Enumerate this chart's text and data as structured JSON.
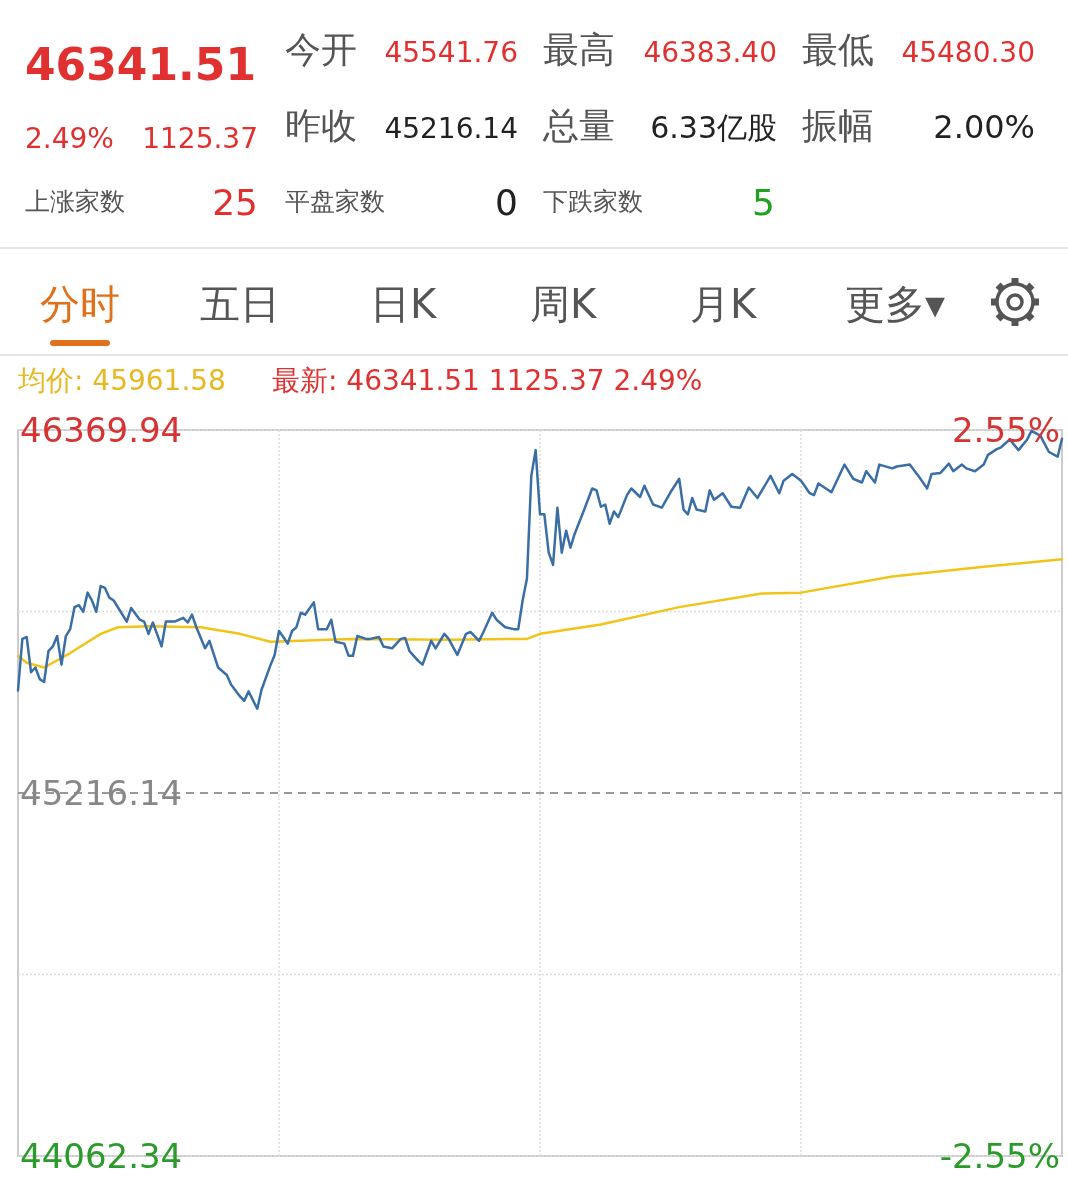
{
  "chart_data": {
    "type": "line",
    "annotations": [
      "46341.51",
      "2.49%",
      "1125.37",
      "今开",
      "45541.76",
      "最高",
      "46383.40",
      "最低",
      "45480.30",
      "昨收",
      "45216.14",
      "总量",
      "6.33亿股",
      "振幅",
      "2.00%",
      "上涨家数",
      "25",
      "平盘家数",
      "0",
      "下跌家数",
      "5",
      "分时",
      "五日",
      "日K",
      "周K",
      "月K",
      "更多▾",
      "均价: 45961.58",
      "最新: 46341.51 1125.37 2.49%"
    ],
    "categories": [
      null,
      null,
      null,
      null,
      null,
      null,
      null,
      null,
      null,
      null,
      null,
      null,
      null,
      null,
      null,
      null,
      null,
      null,
      null,
      null,
      null,
      null,
      null,
      null,
      null,
      null,
      null,
      null,
      null,
      null,
      null,
      null,
      null,
      null,
      null,
      null,
      null,
      null,
      null,
      null,
      null,
      null,
      null,
      null,
      null,
      null,
      null,
      null,
      null,
      null,
      null,
      null,
      null,
      null,
      null,
      null,
      null,
      null,
      null,
      null,
      null,
      null,
      null,
      null,
      null,
      null,
      null,
      null,
      null,
      null,
      null,
      null,
      null,
      null,
      null,
      null,
      null,
      null,
      null,
      null,
      null,
      null,
      null,
      null,
      null,
      null,
      null,
      null,
      null,
      null,
      null,
      null,
      null,
      null,
      null,
      null,
      null,
      null,
      null,
      null,
      null,
      null,
      null,
      null,
      null,
      null,
      null,
      null,
      null,
      null,
      null,
      null,
      null,
      null,
      null,
      null,
      null,
      null,
      null,
      null,
      null,
      null,
      null,
      null,
      null,
      null,
      null,
      null,
      null,
      null,
      null,
      null,
      null,
      null,
      null,
      null,
      null,
      null,
      null,
      null,
      null,
      null,
      null,
      null,
      null,
      null,
      null,
      null,
      null,
      null,
      null,
      null,
      null,
      null,
      null,
      null,
      null,
      null,
      null,
      null,
      null,
      null,
      null,
      null,
      null,
      null,
      null,
      null,
      null,
      null,
      null,
      null,
      null,
      null,
      null,
      null,
      null,
      null,
      null,
      null,
      null,
      null,
      null,
      null,
      null,
      null,
      null,
      null,
      null,
      null,
      null,
      null,
      null,
      null,
      null,
      null,
      null,
      null,
      null,
      null,
      null,
      null,
      null,
      null,
      null,
      null,
      null,
      null,
      null,
      null,
      null,
      null,
      null,
      null,
      null,
      null,
      null,
      null,
      null,
      null,
      null,
      null,
      null,
      null,
      null,
      null,
      null,
      null,
      null,
      null,
      null,
      null,
      null,
      null,
      null,
      null,
      null,
      null,
      null,
      null,
      null
    ],
    "series": [
      {
        "color": "#3a6ea5",
        "values": [
          45542,
          45706,
          45712,
          45600,
          45615,
          45578,
          45569,
          45667,
          45682,
          45715,
          45624,
          45715,
          45737,
          45807,
          45813,
          45792,
          45853,
          45828,
          45792,
          45874,
          45868,
          45837,
          45828,
          null,
          null,
          45761,
          45804,
          null,
          45767,
          45761,
          45722,
          45758,
          null,
          45682,
          45761,
          null,
          45761,
          null,
          45773,
          45758,
          45783,
          45743,
          null,
          45676,
          45700,
          null,
          45615,
          null,
          45591,
          45560,
          null,
          45524,
          45509,
          45539,
          null,
          45484,
          45545,
          null,
          45621,
          45655,
          45731,
          45712,
          45691,
          45731,
          45743,
          45789,
          45783,
          null,
          45822,
          45737,
          null,
          45737,
          45767,
          45697,
          null,
          45691,
          45652,
          45652,
          45715,
          null,
          45706,
          45706,
          null,
          45712,
          45682,
          null,
          45676,
          null,
          45706,
          45709,
          45667,
          null,
          45636,
          45624,
          null,
          45700,
          45676,
          null,
          45722,
          45706,
          null,
          45655,
          null,
          45722,
          45728,
          null,
          45700,
          45728,
          null,
          45789,
          45767,
          null,
          45743,
          null,
          45737,
          45737,
          45828,
          45898,
          46224,
          46306,
          46102,
          46102,
          45980,
          45941,
          46123,
          45980,
          46050,
          45996,
          46041,
          null,
          46111,
          null,
          46184,
          46178,
          46126,
          46133,
          46072,
          46111,
          46093,
          null,
          46163,
          46184,
          null,
          46157,
          46193,
          null,
          46133,
          null,
          46123,
          null,
          46172,
          null,
          46215,
          46117,
          46102,
          46154,
          46117,
          null,
          46111,
          46178,
          46148,
          null,
          46169,
          null,
          46126,
          null,
          46123,
          null,
          46187,
          null,
          46154,
          null,
          null,
          46224,
          null,
          46169,
          46209,
          null,
          46230,
          null,
          46209,
          null,
          46169,
          46163,
          46200,
          null,
          null,
          46172,
          null,
          null,
          46260,
          null,
          46215,
          null,
          46203,
          46239,
          null,
          46203,
          46260,
          null,
          null,
          46248,
          46254,
          null,
          null,
          46260,
          null,
          46224,
          null,
          46184,
          46230,
          null,
          46233,
          null,
          46263,
          46239,
          null,
          46260,
          46248,
          null,
          46239,
          null,
          46260,
          46291,
          null,
          46309,
          46315,
          null,
          46340,
          null,
          46306,
          null,
          46340,
          46367,
          null,
          46352,
          null,
          46300,
          null,
          46285,
          46342
        ]
      },
      {
        "color": "#f0c419",
        "values": [
          45652,
          null,
          45630,
          null,
          null,
          null,
          45615,
          null,
          null,
          null,
          null,
          null,
          45661,
          null,
          null,
          null,
          null,
          null,
          null,
          45722,
          null,
          null,
          null,
          45743,
          null,
          null,
          null,
          null,
          null,
          null,
          45746,
          null,
          null,
          null,
          null,
          null,
          null,
          null,
          null,
          null,
          null,
          null,
          45743,
          null,
          null,
          null,
          null,
          null,
          null,
          null,
          null,
          45722,
          null,
          null,
          null,
          null,
          null,
          null,
          45697,
          null,
          null,
          null,
          null,
          null,
          null,
          45700,
          null,
          null,
          null,
          null,
          null,
          null,
          null,
          null,
          null,
          null,
          45706,
          null,
          null,
          null,
          null,
          null,
          null,
          null,
          null,
          null,
          null,
          null,
          null,
          null,
          null,
          null,
          null,
          null,
          null,
          null,
          null,
          null,
          null,
          45703,
          null,
          null,
          null,
          null,
          null,
          null,
          null,
          null,
          null,
          null,
          null,
          null,
          null,
          null,
          null,
          null,
          null,
          45706,
          null,
          null,
          45722,
          null,
          null,
          null,
          null,
          null,
          null,
          null,
          null,
          null,
          null,
          null,
          null,
          null,
          45752,
          null,
          null,
          null,
          null,
          null,
          null,
          null,
          null,
          null,
          null,
          null,
          null,
          null,
          null,
          null,
          null,
          null,
          45807,
          null,
          null,
          null,
          null,
          null,
          null,
          null,
          null,
          null,
          null,
          null,
          null,
          null,
          null,
          null,
          null,
          null,
          null,
          45850,
          null,
          null,
          null,
          null,
          null,
          null,
          null,
          null,
          45853,
          null,
          null,
          null,
          null,
          null,
          null,
          null,
          null,
          null,
          null,
          null,
          null,
          null,
          null,
          null,
          null,
          null,
          null,
          null,
          null,
          45904,
          null,
          null,
          null,
          null,
          null,
          null,
          null,
          null,
          null,
          null,
          null,
          null,
          null,
          null,
          null,
          null,
          null,
          null,
          null,
          null,
          45935,
          null,
          null,
          null,
          null,
          null,
          null,
          null,
          null,
          null,
          null,
          null,
          null,
          null,
          null,
          null,
          null,
          null,
          45959
        ]
      }
    ],
    "ylim": [
      44062.34,
      46369.94
    ],
    "yticks": [
      {
        "value": 46369.94,
        "label": "46369.94"
      },
      {
        "value": 45793.04,
        "label": null
      },
      {
        "value": 45216.14,
        "label": "45216.14"
      },
      {
        "value": 44639.24,
        "label": null
      },
      {
        "value": 44062.34,
        "label": "44062.34"
      }
    ],
    "y2lim": [
      -2.55,
      2.55
    ],
    "y2ticks": [
      {
        "value": 2.55,
        "label": "2.55%"
      },
      {
        "value": -2.55,
        "label": "-2.55%"
      }
    ],
    "ref_lines": [
      {
        "axis": "y",
        "value": 45216.14,
        "color": "#999999",
        "line_style": "dashed"
      }
    ],
    "grid": true,
    "line_style": "solid",
    "marker": "none"
  }
}
